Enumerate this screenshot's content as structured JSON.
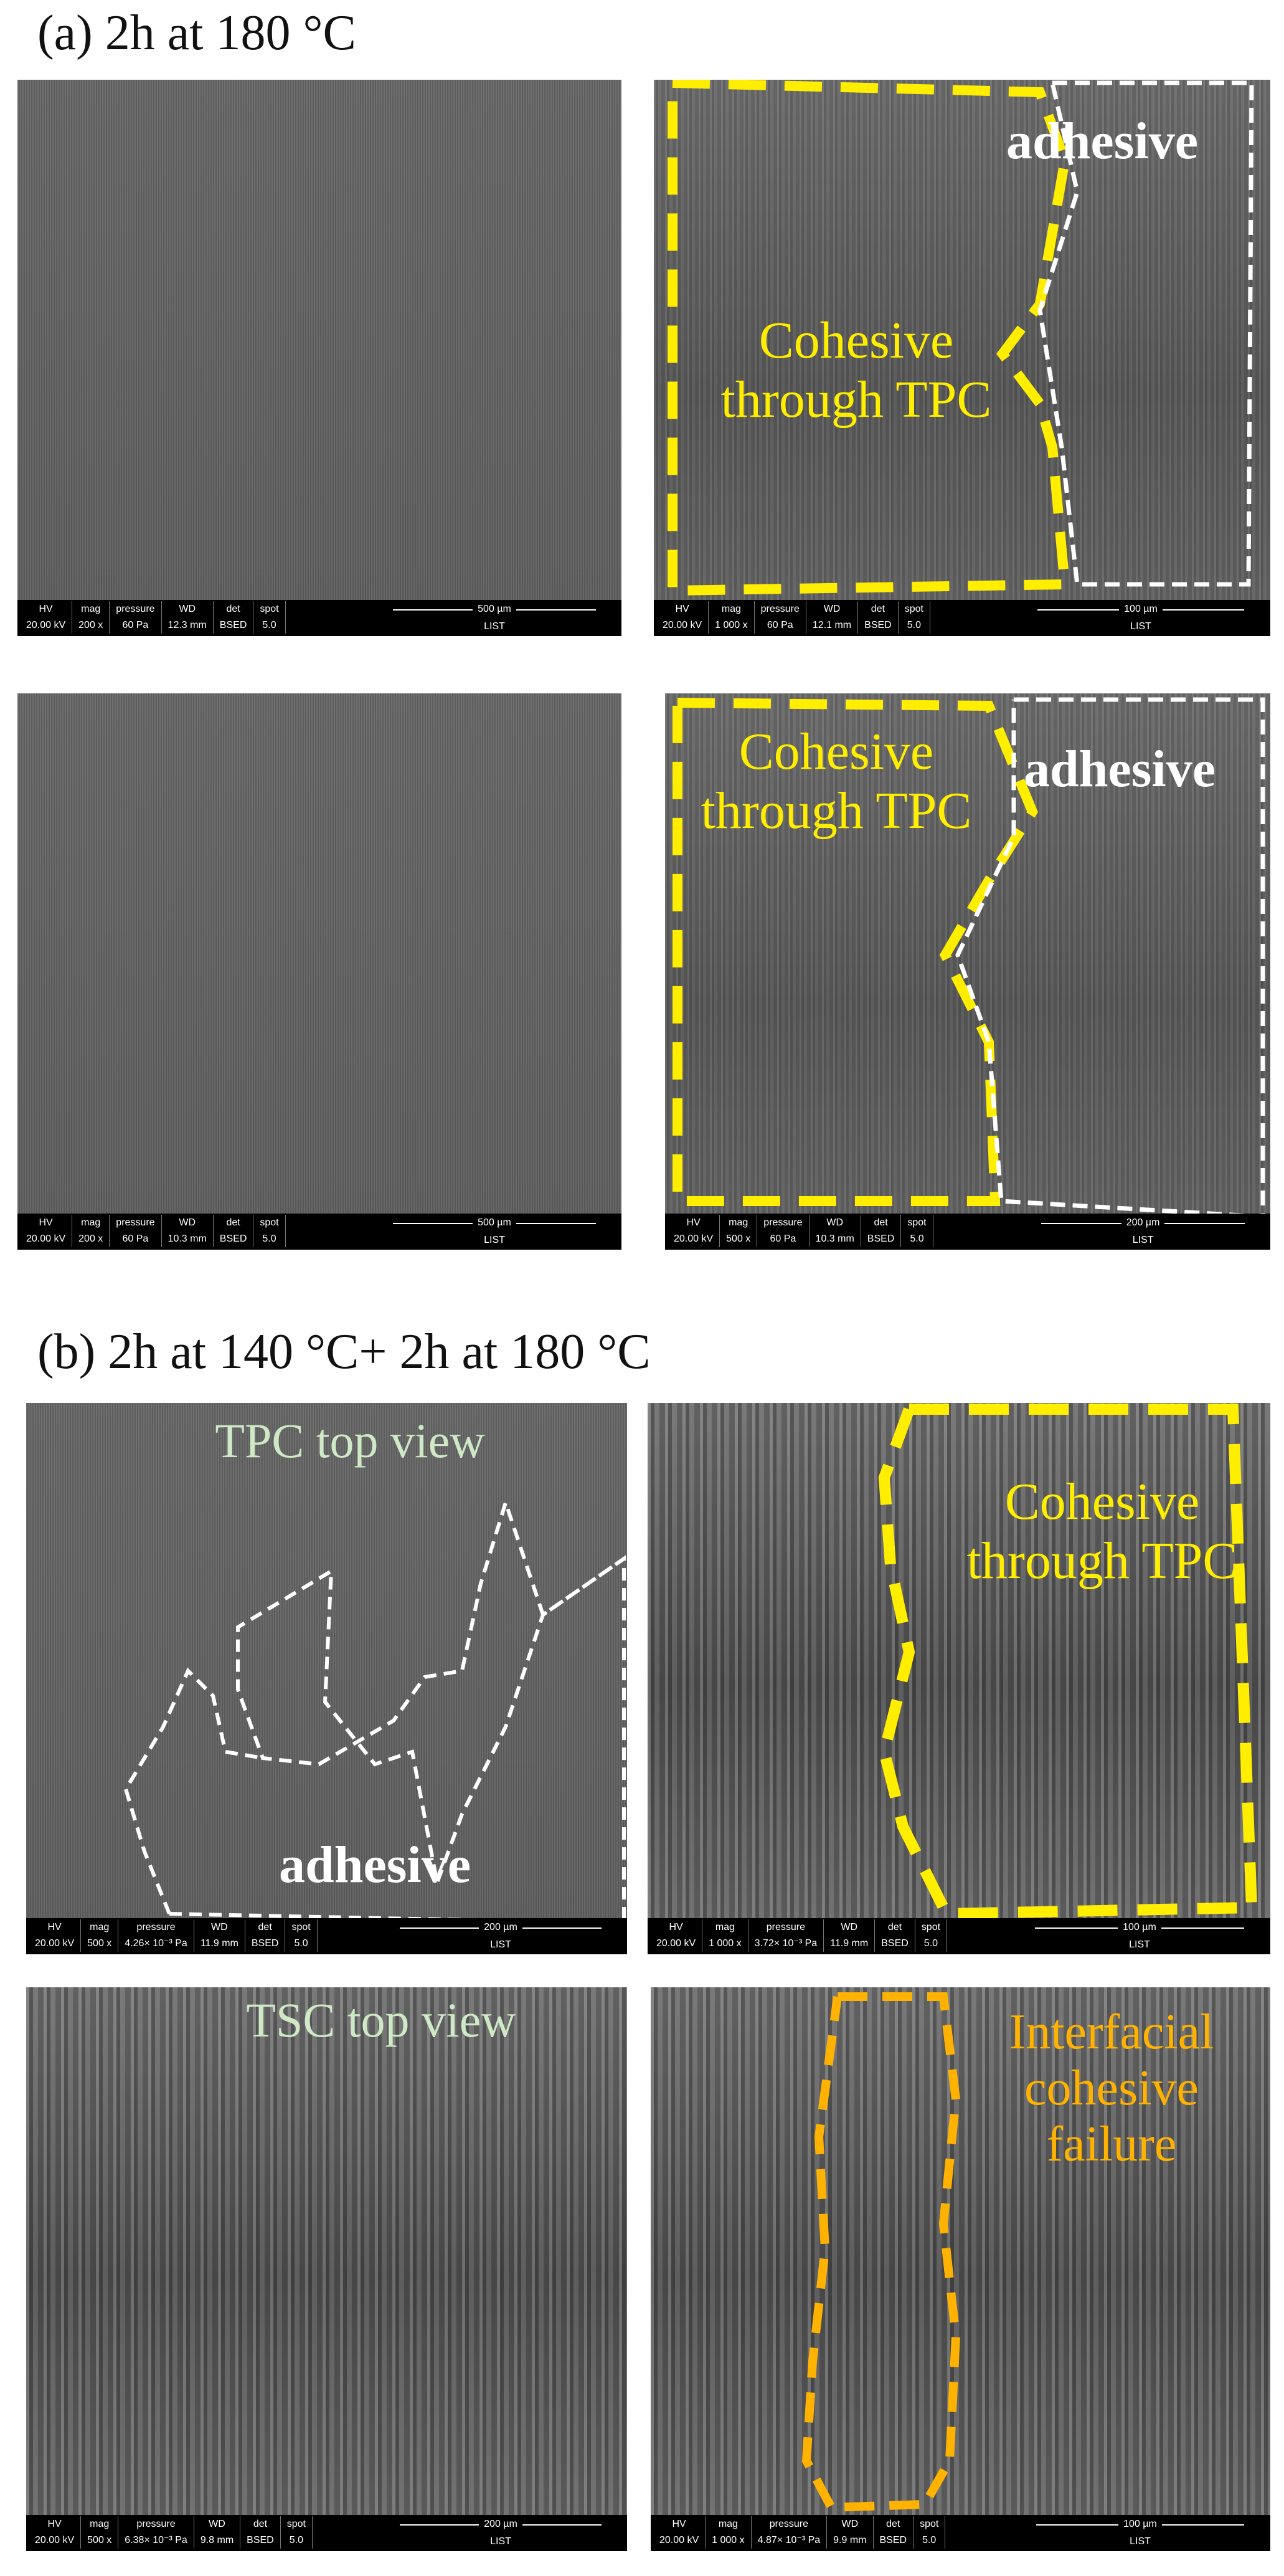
{
  "sections": [
    {
      "title": "(a) 2h at 180 °C"
    },
    {
      "title": "(b) 2h at 140 °C+ 2h at 180 °C"
    }
  ],
  "info_headers": {
    "hv": "HV",
    "mag": "mag",
    "pressure": "pressure",
    "wd": "WD",
    "det": "det",
    "spot": "spot",
    "list": "LIST"
  },
  "colors": {
    "cohesive": "#ffee00",
    "adhesive": "#ffffff",
    "top_view": "#cfe8c6",
    "interfacial": "#ffb300"
  },
  "panels": [
    {
      "hv": "20.00 kV",
      "mag": "200 x",
      "pressure": "60 Pa",
      "wd": "12.3 mm",
      "det": "BSED",
      "spot": "5.0",
      "scale": "500 µm"
    },
    {
      "hv": "20.00 kV",
      "mag": "1 000 x",
      "pressure": "60 Pa",
      "wd": "12.1 mm",
      "det": "BSED",
      "spot": "5.0",
      "scale": "100 µm",
      "labels": {
        "adhesive": "adhesive",
        "cohesive_1": "Cohesive",
        "cohesive_2": "through TPC"
      }
    },
    {
      "hv": "20.00 kV",
      "mag": "200 x",
      "pressure": "60 Pa",
      "wd": "10.3 mm",
      "det": "BSED",
      "spot": "5.0",
      "scale": "500 µm"
    },
    {
      "hv": "20.00 kV",
      "mag": "500 x",
      "pressure": "60 Pa",
      "wd": "10.3 mm",
      "det": "BSED",
      "spot": "5.0",
      "scale": "200 µm",
      "labels": {
        "adhesive": "adhesive",
        "cohesive_1": "Cohesive",
        "cohesive_2": "through TPC"
      }
    },
    {
      "hv": "20.00 kV",
      "mag": "500 x",
      "pressure": "4.26× 10⁻³ Pa",
      "wd": "11.9 mm",
      "det": "BSED",
      "spot": "5.0",
      "scale": "200 µm",
      "labels": {
        "top_view": "TPC top view",
        "adhesive": "adhesive"
      }
    },
    {
      "hv": "20.00 kV",
      "mag": "1 000 x",
      "pressure": "3.72× 10⁻³ Pa",
      "wd": "11.9 mm",
      "det": "BSED",
      "spot": "5.0",
      "scale": "100 µm",
      "labels": {
        "cohesive_1": "Cohesive",
        "cohesive_2": "through TPC"
      }
    },
    {
      "hv": "20.00 kV",
      "mag": "500 x",
      "pressure": "6.38× 10⁻³ Pa",
      "wd": "9.8 mm",
      "det": "BSED",
      "spot": "5.0",
      "scale": "200 µm",
      "labels": {
        "top_view": "TSC top view"
      }
    },
    {
      "hv": "20.00 kV",
      "mag": "1 000 x",
      "pressure": "4.87× 10⁻³ Pa",
      "wd": "9.9 mm",
      "det": "BSED",
      "spot": "5.0",
      "scale": "100 µm",
      "labels": {
        "interfacial_1": "Interfacial",
        "interfacial_2": "cohesive",
        "interfacial_3": "failure"
      }
    }
  ]
}
